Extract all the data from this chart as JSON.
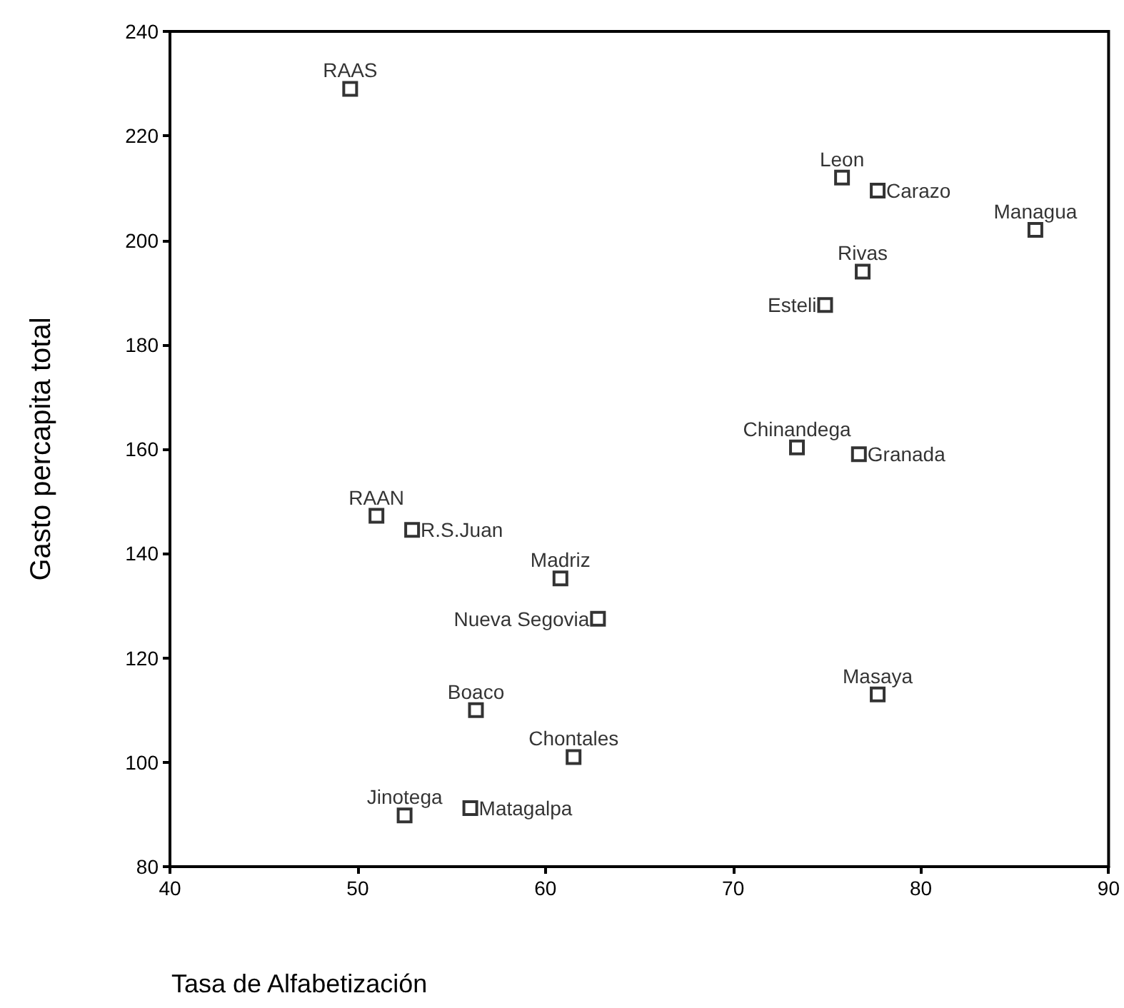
{
  "chart_data": {
    "type": "scatter",
    "xlabel": "Tasa de Alfabetización",
    "ylabel": "Gasto percapita total",
    "x": [
      49.6,
      75.8,
      77.7,
      86.1,
      76.9,
      74.9,
      73.4,
      76.7,
      51.0,
      52.9,
      60.8,
      62.8,
      77.7,
      56.3,
      61.5,
      52.5,
      56.0
    ],
    "series": [
      {
        "color": "#000000",
        "values": [
          229,
          212,
          209.5,
          202,
          194,
          187.6,
          160.3,
          159,
          147.2,
          144.5,
          135.2,
          127.5,
          113,
          110,
          101,
          89.8,
          91.2
        ]
      }
    ],
    "annotations": [
      {
        "text": "RAAS",
        "x": 49.6,
        "y": 229
      },
      {
        "text": "Leon",
        "x": 75.8,
        "y": 212
      },
      {
        "text": "Carazo",
        "x": 77.7,
        "y": 209.5
      },
      {
        "text": "Managua",
        "x": 86.1,
        "y": 202
      },
      {
        "text": "Rivas",
        "x": 76.9,
        "y": 194
      },
      {
        "text": "Esteli",
        "x": 74.9,
        "y": 187.6
      },
      {
        "text": "Chinandega",
        "x": 73.4,
        "y": 160.3
      },
      {
        "text": "Granada",
        "x": 76.7,
        "y": 159
      },
      {
        "text": "RAAN",
        "x": 51.0,
        "y": 147.2
      },
      {
        "text": "R.S.Juan",
        "x": 52.9,
        "y": 144.5
      },
      {
        "text": "Madriz",
        "x": 60.8,
        "y": 135.2
      },
      {
        "text": "Nueva Segovia",
        "x": 62.8,
        "y": 127.5
      },
      {
        "text": "Masaya",
        "x": 77.7,
        "y": 113
      },
      {
        "text": "Boaco",
        "x": 56.3,
        "y": 110
      },
      {
        "text": "Chontales",
        "x": 61.5,
        "y": 101
      },
      {
        "text": "Jinotega",
        "x": 52.5,
        "y": 89.8
      },
      {
        "text": "Matagalpa",
        "x": 56.0,
        "y": 91.2
      }
    ],
    "xlim": [
      40,
      90
    ],
    "xticks": [
      40,
      50,
      60,
      70,
      80,
      90
    ],
    "ylim": [
      80,
      240
    ],
    "yticks": [
      80,
      100,
      120,
      140,
      160,
      180,
      200,
      220,
      240
    ],
    "marker": "square",
    "grid": false
  }
}
